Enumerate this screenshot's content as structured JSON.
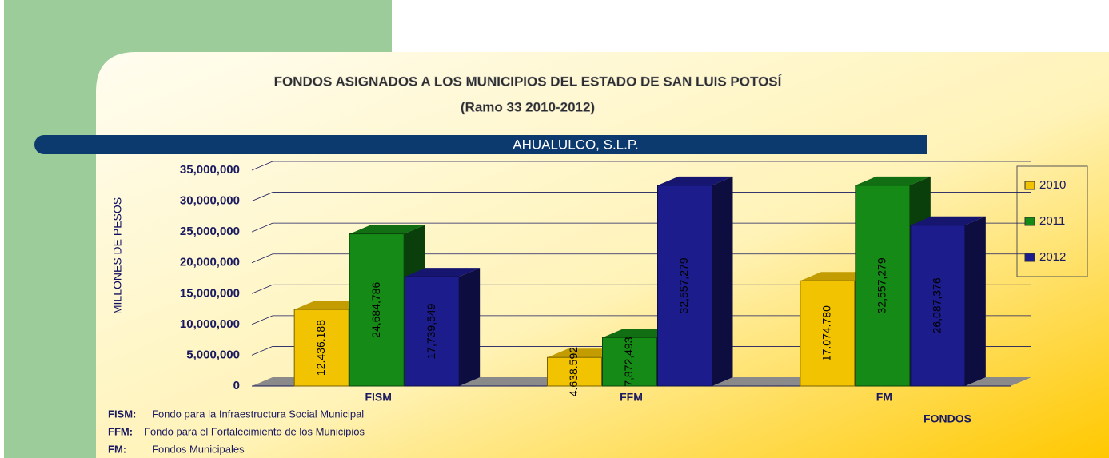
{
  "chart_data": {
    "type": "bar",
    "title": "FONDOS ASIGNADOS A LOS MUNICIPIOS DEL ESTADO DE SAN LUIS POTOSÍ",
    "subtitle": "(Ramo  33 2010-2012)",
    "municipality": "AHUALULCO, S.L.P.",
    "y_label": "MILLONES DE PESOS",
    "x_label": "FONDOS",
    "categories": [
      "FISM",
      "FFM",
      "FM"
    ],
    "series": [
      {
        "name": "2010",
        "color": "#f2c300",
        "values": [
          12436188,
          4638592,
          17074780
        ],
        "value_labels": [
          "12.436.188",
          "4.638.592",
          "17.074.780"
        ]
      },
      {
        "name": "2011",
        "color": "#168a16",
        "values": [
          24684786,
          7872493,
          32557279
        ],
        "value_labels": [
          "24,684,786",
          "7,872,493",
          "32,557,279"
        ]
      },
      {
        "name": "2012",
        "color": "#1c1c8c",
        "values": [
          17739549,
          32557279,
          26087376
        ],
        "value_labels": [
          "17,739,549",
          "32,557,279",
          "26,087,376"
        ]
      }
    ],
    "ylim": [
      0,
      35000000
    ],
    "yticks": [
      0,
      {
        "value": 5000000,
        "label": "5,000,000"
      },
      {
        "value": 10000000,
        "label": "10,000,000"
      },
      {
        "value": 15000000,
        "label": "15,000,000"
      },
      {
        "value": 20000000,
        "label": "20,000,000"
      },
      {
        "value": 25000000,
        "label": "25,000,000"
      },
      {
        "value": 30000000,
        "label": "30,000,000"
      },
      {
        "value": 35000000,
        "label": "35,000,000"
      }
    ],
    "grid": true,
    "legend": "right",
    "footnotes": [
      {
        "abbr": "FISM:",
        "text": "Fondo para la Infraestructura Social Municipal"
      },
      {
        "abbr": "FFM:",
        "text": "Fondo para el Fortalecimiento de los Municipios"
      },
      {
        "abbr": "FM:",
        "text": "Fondos Municipales"
      }
    ]
  }
}
